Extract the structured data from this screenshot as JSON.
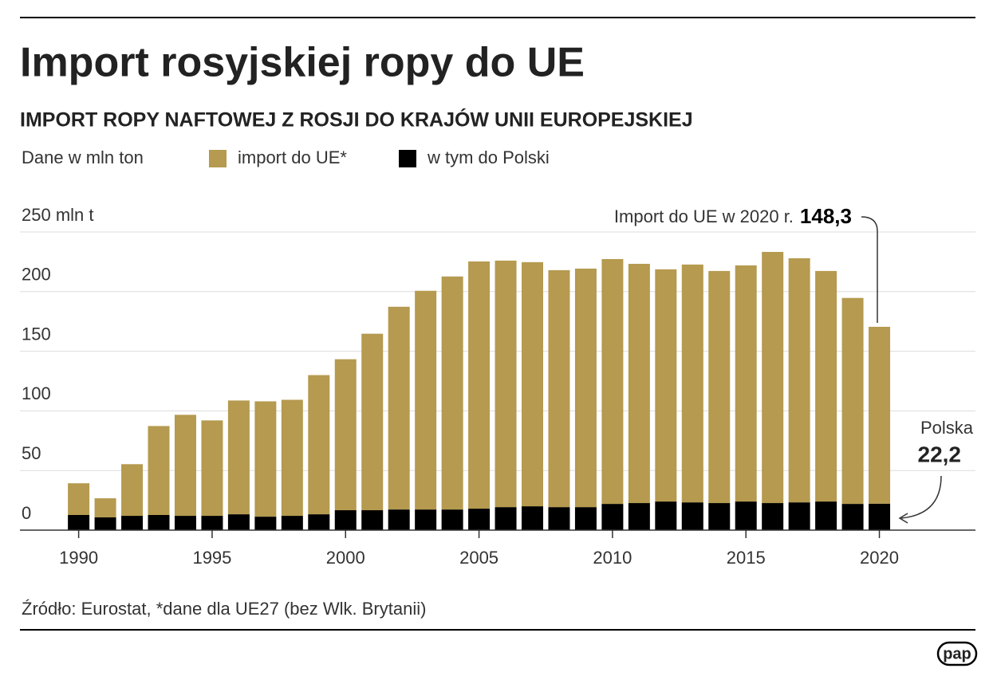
{
  "chart_data": {
    "type": "bar",
    "title": "Import rosyjskiej ropy do UE",
    "subtitle": "IMPORT ROPY NAFTOWEJ Z ROSJI DO KRAJÓW UNII EUROPEJSKIEJ",
    "unit_note": "Dane w mln ton",
    "stacked": true,
    "x": [
      1990,
      1991,
      1992,
      1993,
      1994,
      1995,
      1996,
      1997,
      1998,
      1999,
      2000,
      2001,
      2002,
      2003,
      2004,
      2005,
      2006,
      2007,
      2008,
      2009,
      2010,
      2011,
      2012,
      2013,
      2014,
      2015,
      2016,
      2017,
      2018,
      2019,
      2020
    ],
    "xlim": [
      1987.8,
      2023.6
    ],
    "xticks": [
      1990,
      1995,
      2000,
      2005,
      2010,
      2015,
      2020
    ],
    "ylim": [
      0,
      250
    ],
    "yticks": [
      0,
      50,
      100,
      150,
      200,
      {
        "value": 250,
        "label": "250 mln t"
      }
    ],
    "grid": true,
    "series": [
      {
        "name": "w tym do Polski",
        "color": "#000000",
        "values": [
          12.7,
          10.7,
          12.0,
          12.7,
          12.0,
          12.0,
          13.3,
          11.3,
          12.0,
          13.3,
          16.7,
          16.7,
          17.3,
          17.3,
          17.3,
          18.0,
          19.3,
          20.0,
          19.3,
          19.3,
          22.0,
          22.7,
          24.0,
          23.3,
          22.7,
          24.0,
          22.7,
          23.3,
          24.0,
          22.0,
          22.2
        ],
        "value_labels": [
          null,
          null,
          null,
          null,
          null,
          null,
          null,
          null,
          null,
          null,
          null,
          null,
          null,
          null,
          null,
          null,
          null,
          null,
          null,
          null,
          null,
          null,
          null,
          null,
          null,
          null,
          null,
          null,
          null,
          null,
          "22,2"
        ]
      },
      {
        "name": "import do UE*",
        "color": "#b59a4f",
        "values": [
          26.6,
          16.0,
          43.3,
          74.6,
          84.7,
          80.0,
          95.4,
          96.7,
          97.3,
          116.7,
          126.6,
          148.0,
          170.0,
          183.4,
          195.4,
          207.3,
          206.7,
          204.7,
          198.7,
          200.0,
          205.3,
          200.6,
          194.7,
          199.4,
          194.6,
          198.0,
          210.6,
          204.7,
          193.3,
          172.7,
          148.3
        ],
        "value_labels": [
          null,
          null,
          null,
          null,
          null,
          null,
          null,
          null,
          null,
          null,
          null,
          null,
          null,
          null,
          null,
          null,
          null,
          null,
          null,
          null,
          null,
          null,
          null,
          null,
          null,
          null,
          null,
          null,
          null,
          null,
          "148,3"
        ]
      }
    ],
    "annotations": [
      "Import do UE w 2020 r.",
      "Polska"
    ],
    "source": "Źródło: Eurostat, *dane dla UE27 (bez Wlk. Brytanii)",
    "logo": "pap"
  }
}
